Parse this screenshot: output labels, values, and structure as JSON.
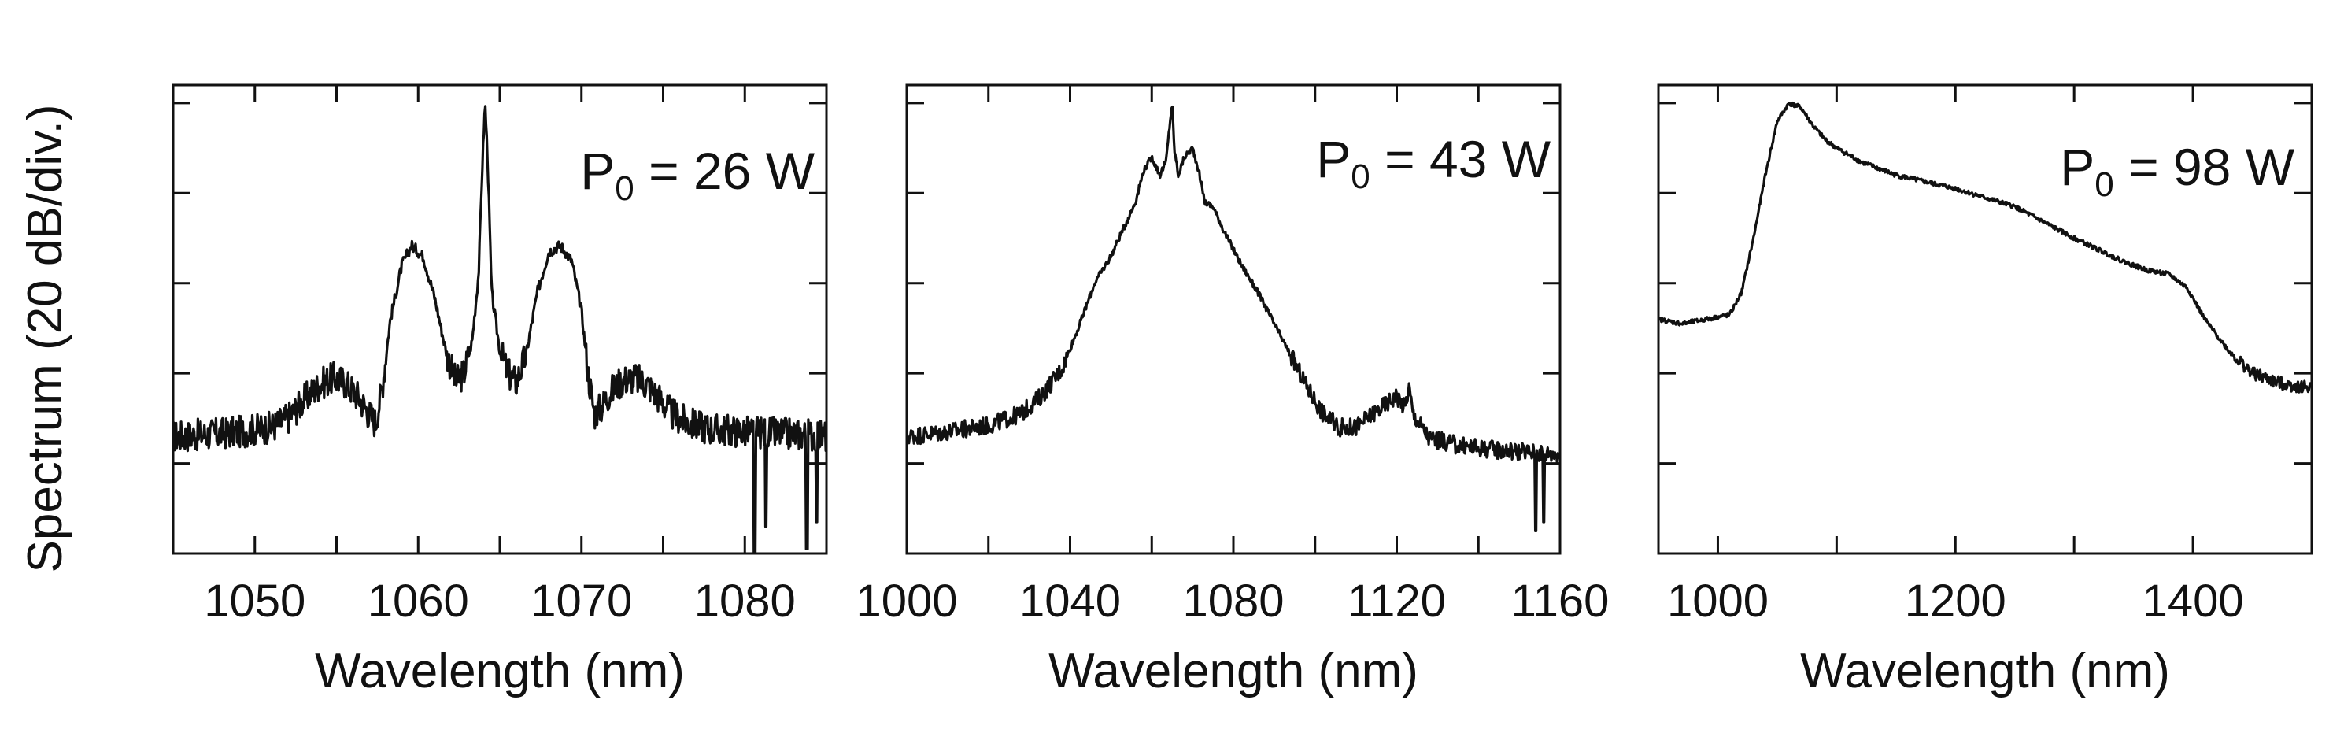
{
  "figure": {
    "ylabel": "Spectrum (20 dB/div.)"
  },
  "chart_data": [
    {
      "type": "line",
      "title": "",
      "annotation": {
        "base": "P",
        "subscript": "0",
        "rest": " = 26 W"
      },
      "xlabel": "Wavelength (nm)",
      "ylabel": "Spectrum (20 dB/div.)",
      "xlim": [
        1045,
        1085
      ],
      "ylim": [
        0,
        5.2
      ],
      "xticks": [
        1050,
        1055,
        1060,
        1065,
        1070,
        1075,
        1080,
        1085
      ],
      "xticklabels": [
        "1050",
        "",
        "1060",
        "",
        "1070",
        "",
        "1080",
        ""
      ],
      "yticks": [
        1,
        2,
        3,
        4,
        5
      ],
      "noise_amplitude": 0.18,
      "series": [
        {
          "name": "P0 = 26 W",
          "x": [
            1045,
            1047,
            1049,
            1051,
            1052,
            1053,
            1054,
            1054.8,
            1055.5,
            1056.3,
            1057,
            1057.4,
            1057.8,
            1058.3,
            1059,
            1059.6,
            1060.3,
            1061,
            1061.7,
            1062.3,
            1062.8,
            1063.3,
            1063.7,
            1063.95,
            1064.1,
            1064.25,
            1064.5,
            1065,
            1065.5,
            1066,
            1066.6,
            1067.3,
            1068,
            1068.7,
            1069.4,
            1070,
            1070.4,
            1070.8,
            1071.2,
            1071.8,
            1072.5,
            1073.2,
            1074,
            1074.8,
            1075.5,
            1076.5,
            1078,
            1080,
            1082,
            1084,
            1085
          ],
          "values": [
            1.3,
            1.32,
            1.35,
            1.4,
            1.5,
            1.7,
            1.88,
            1.95,
            1.9,
            1.75,
            1.55,
            1.45,
            1.85,
            2.6,
            3.2,
            3.42,
            3.3,
            2.85,
            2.25,
            1.9,
            2.0,
            2.35,
            3.1,
            4.4,
            5.0,
            4.4,
            2.9,
            2.25,
            2.0,
            1.9,
            2.2,
            2.9,
            3.35,
            3.42,
            3.25,
            2.7,
            2.0,
            1.55,
            1.62,
            1.8,
            1.92,
            1.95,
            1.88,
            1.72,
            1.55,
            1.45,
            1.38,
            1.35,
            1.33,
            1.32,
            1.3
          ],
          "dips": [
            [
              1080.6,
              0.0
            ],
            [
              1081.3,
              0.3
            ],
            [
              1083.8,
              0.05
            ],
            [
              1084.4,
              0.35
            ]
          ]
        }
      ]
    },
    {
      "type": "line",
      "title": "",
      "annotation": {
        "base": "P",
        "subscript": "0",
        "rest": " = 43 W"
      },
      "xlabel": "Wavelength (nm)",
      "ylabel": "Spectrum (20 dB/div.)",
      "xlim": [
        1000,
        1160
      ],
      "ylim": [
        0,
        5.2
      ],
      "xticks": [
        1000,
        1020,
        1040,
        1060,
        1080,
        1100,
        1120,
        1140,
        1160
      ],
      "xticklabels": [
        "1000",
        "",
        "1040",
        "",
        "1080",
        "",
        "1120",
        "",
        "1160"
      ],
      "yticks": [
        1,
        2,
        3,
        4,
        5
      ],
      "noise_amplitude": 0.1,
      "series": [
        {
          "name": "P0 = 43 W",
          "x": [
            1000,
            1010,
            1020,
            1028,
            1033,
            1038,
            1042,
            1046,
            1050,
            1053,
            1056,
            1058,
            1060,
            1062,
            1063.5,
            1064.5,
            1065,
            1065.5,
            1066.5,
            1068,
            1070,
            1071.5,
            1073,
            1075,
            1078,
            1082,
            1086,
            1090,
            1094,
            1098,
            1102,
            1106,
            1110,
            1115,
            1120,
            1122,
            1123,
            1124,
            1128,
            1135,
            1145,
            1155,
            1160
          ],
          "values": [
            1.3,
            1.35,
            1.42,
            1.55,
            1.75,
            2.05,
            2.5,
            3.0,
            3.3,
            3.6,
            3.9,
            4.25,
            4.4,
            4.2,
            4.35,
            4.8,
            5.0,
            4.5,
            4.2,
            4.4,
            4.5,
            4.25,
            3.9,
            3.85,
            3.55,
            3.2,
            2.9,
            2.55,
            2.2,
            1.85,
            1.55,
            1.4,
            1.4,
            1.58,
            1.75,
            1.62,
            1.85,
            1.55,
            1.28,
            1.2,
            1.15,
            1.12,
            1.1
          ],
          "dips": [
            [
              1154,
              0.25
            ],
            [
              1156,
              0.35
            ]
          ]
        }
      ]
    },
    {
      "type": "line",
      "title": "",
      "annotation": {
        "base": "P",
        "subscript": "0",
        "rest": " = 98 W"
      },
      "xlabel": "Wavelength (nm)",
      "ylabel": "Spectrum (20 dB/div.)",
      "xlim": [
        950,
        1500
      ],
      "ylim": [
        0,
        5.2
      ],
      "xticks": [
        1000,
        1100,
        1200,
        1300,
        1400
      ],
      "xticklabels": [
        "1000",
        "",
        "1200",
        "",
        "1400"
      ],
      "yticks": [
        1,
        2,
        3,
        4,
        5
      ],
      "noise_amplitude": 0.07,
      "series": [
        {
          "name": "P0 = 98 W",
          "x": [
            950,
            970,
            990,
            1010,
            1020,
            1030,
            1040,
            1050,
            1060,
            1070,
            1080,
            1090,
            1100,
            1120,
            1150,
            1200,
            1250,
            1300,
            1340,
            1360,
            1380,
            1395,
            1410,
            1430,
            1450,
            1470,
            1490,
            1500
          ],
          "values": [
            2.6,
            2.55,
            2.6,
            2.65,
            2.9,
            3.5,
            4.2,
            4.8,
            5.0,
            4.95,
            4.75,
            4.6,
            4.5,
            4.35,
            4.2,
            4.05,
            3.85,
            3.5,
            3.25,
            3.15,
            3.1,
            2.95,
            2.6,
            2.25,
            2.0,
            1.9,
            1.85,
            1.85
          ],
          "dips": []
        }
      ]
    }
  ]
}
